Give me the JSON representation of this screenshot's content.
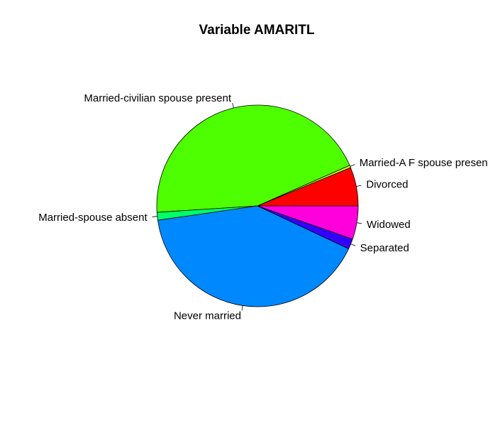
{
  "chart_data": {
    "type": "pie",
    "title": "Variable AMARITL",
    "slices": [
      {
        "label": "Divorced",
        "value": 6.4,
        "color": "#ff0000"
      },
      {
        "label": "Married-A F spouse present",
        "value": 0.4,
        "color": "#ccff00"
      },
      {
        "label": "Married-civilian spouse present",
        "value": 45.8,
        "color": "#4dff00"
      },
      {
        "label": "Married-spouse absent",
        "value": 1.3,
        "color": "#00ff66"
      },
      {
        "label": "Never married",
        "value": 42.0,
        "color": "#0088ff"
      },
      {
        "label": "Separated",
        "value": 1.7,
        "color": "#3300ff"
      },
      {
        "label": "Widowed",
        "value": 5.5,
        "color": "#ff00dd"
      }
    ]
  }
}
